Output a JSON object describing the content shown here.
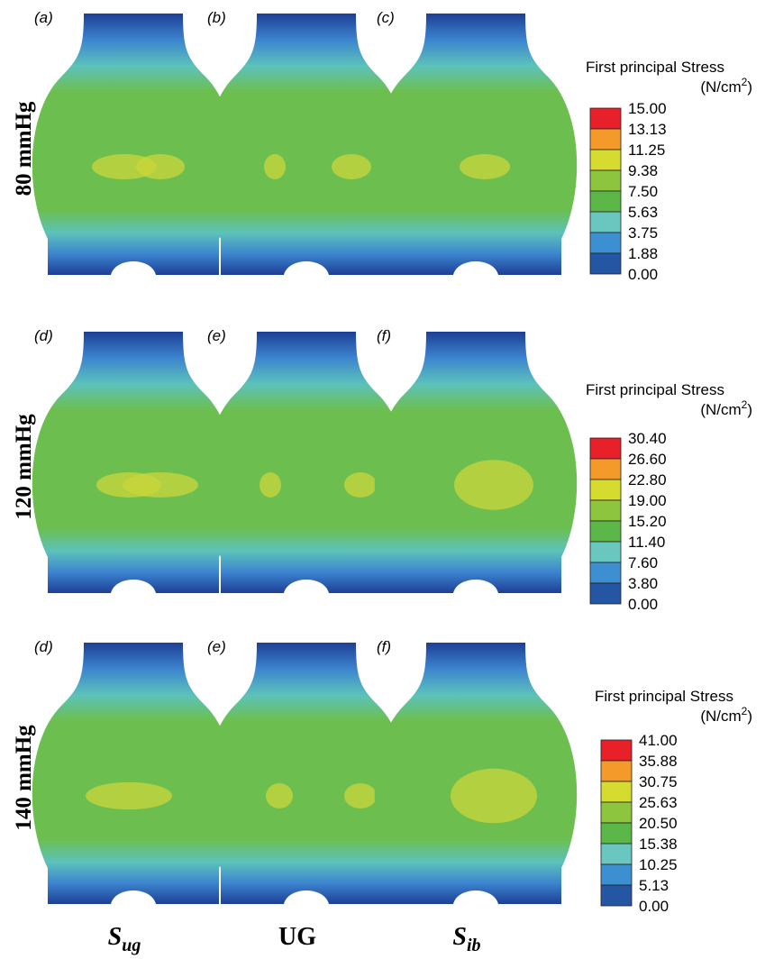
{
  "rows": [
    {
      "label": "80 mmHg",
      "panels": [
        "(a)",
        "(b)",
        "(c)"
      ],
      "legend": {
        "title": "First principal Stress",
        "unit": "(N/cm",
        "unit_exp": "2",
        "unit_close": ")",
        "ticks": [
          "15.00",
          "13.13",
          "11.25",
          "9.38",
          "7.50",
          "5.63",
          "3.75",
          "1.88",
          "0.00"
        ]
      }
    },
    {
      "label": "120 mmHg",
      "panels": [
        "(d)",
        "(e)",
        "(f)"
      ],
      "legend": {
        "title": "First principal Stress",
        "unit": "(N/cm",
        "unit_exp": "2",
        "unit_close": ")",
        "ticks": [
          "30.40",
          "26.60",
          "22.80",
          "19.00",
          "15.20",
          "11.40",
          "7.60",
          "3.80",
          "0.00"
        ]
      }
    },
    {
      "label": "140 mmHg",
      "panels": [
        "(d)",
        "(e)",
        "(f)"
      ],
      "legend": {
        "title": "First principal Stress",
        "unit": "(N/cm",
        "unit_exp": "2",
        "unit_close": ")",
        "ticks": [
          "41.00",
          "35.88",
          "30.75",
          "25.63",
          "20.50",
          "15.38",
          "10.25",
          "5.13",
          "0.00"
        ]
      }
    }
  ],
  "columns": [
    {
      "base": "S",
      "sub": "ug"
    },
    {
      "base": "UG"
    },
    {
      "base": "S",
      "sub": "ib"
    }
  ]
}
